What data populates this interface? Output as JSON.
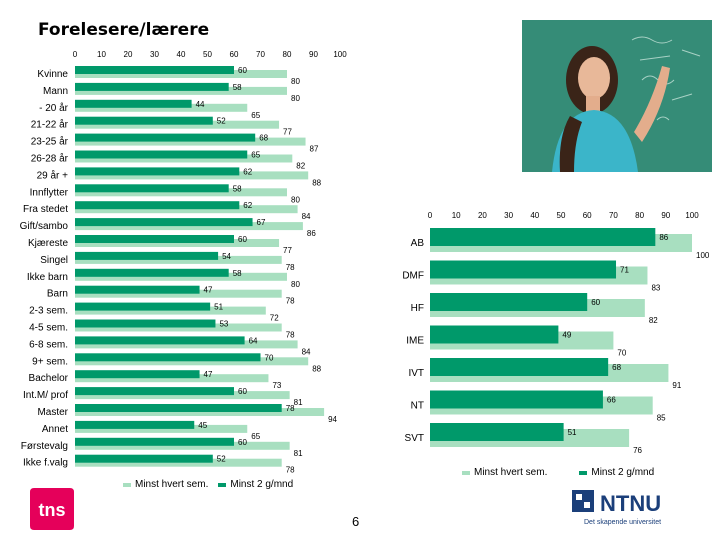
{
  "page_title": "Forelesere/lærere",
  "page_number": "6",
  "colors": {
    "minst_hvert_sem": "#a8dfc0",
    "minst_2_g_mnd": "#00996a",
    "tns": "#e5005a",
    "ntnu": "#1b3f7a"
  },
  "tns_logo": {
    "text": "tns"
  },
  "ntnu_logo": {
    "name": "NTNU",
    "tagline": "Det skapende universitet"
  },
  "chart_data": [
    {
      "type": "bar",
      "orientation": "horizontal",
      "title": "Forelesere/lærere",
      "xlim": [
        0,
        100
      ],
      "ticks": [
        "0",
        "10",
        "20",
        "30",
        "40",
        "50",
        "60",
        "70",
        "80",
        "90",
        "100"
      ],
      "categories": [
        "Kvinne",
        "Mann",
        "- 20 år",
        "21-22 år",
        "23-25 år",
        "26-28 år",
        "29 år +",
        "Innflytter",
        "Fra stedet",
        "Gift/sambo",
        "Kjæreste",
        "Singel",
        "Ikke barn",
        "Barn",
        "2-3 sem.",
        "4-5 sem.",
        "6-8 sem.",
        "9+ sem.",
        "Bachelor",
        "Int.M/ prof",
        "Master",
        "Annet",
        "Førstevalg",
        "Ikke f.valg"
      ],
      "series": [
        {
          "name": "Minst hvert sem.",
          "values": [
            80,
            80,
            65,
            77,
            87,
            82,
            88,
            80,
            84,
            86,
            77,
            78,
            80,
            78,
            72,
            78,
            84,
            88,
            73,
            81,
            94,
            65,
            81,
            78
          ]
        },
        {
          "name": "Minst 2 g/mnd",
          "values": [
            60,
            58,
            44,
            52,
            68,
            65,
            62,
            58,
            62,
            67,
            60,
            54,
            58,
            47,
            51,
            53,
            64,
            70,
            47,
            60,
            78,
            45,
            60,
            52
          ]
        }
      ],
      "legend": {
        "position": "bottom",
        "labels": [
          "Minst hvert sem.",
          "Minst 2 g/mnd"
        ]
      }
    },
    {
      "type": "bar",
      "orientation": "horizontal",
      "xlim": [
        0,
        100
      ],
      "ticks": [
        "0",
        "10",
        "20",
        "30",
        "40",
        "50",
        "60",
        "70",
        "80",
        "90",
        "100"
      ],
      "categories": [
        "AB",
        "DMF",
        "HF",
        "IME",
        "IVT",
        "NT",
        "SVT"
      ],
      "series": [
        {
          "name": "Minst hvert sem.",
          "values": [
            100,
            83,
            82,
            70,
            91,
            85,
            76
          ]
        },
        {
          "name": "Minst 2 g/mnd",
          "values": [
            86,
            71,
            60,
            49,
            68,
            66,
            51
          ]
        }
      ],
      "legend": {
        "position": "bottom",
        "labels": [
          "Minst hvert sem.",
          "Minst 2 g/mnd"
        ]
      }
    }
  ]
}
